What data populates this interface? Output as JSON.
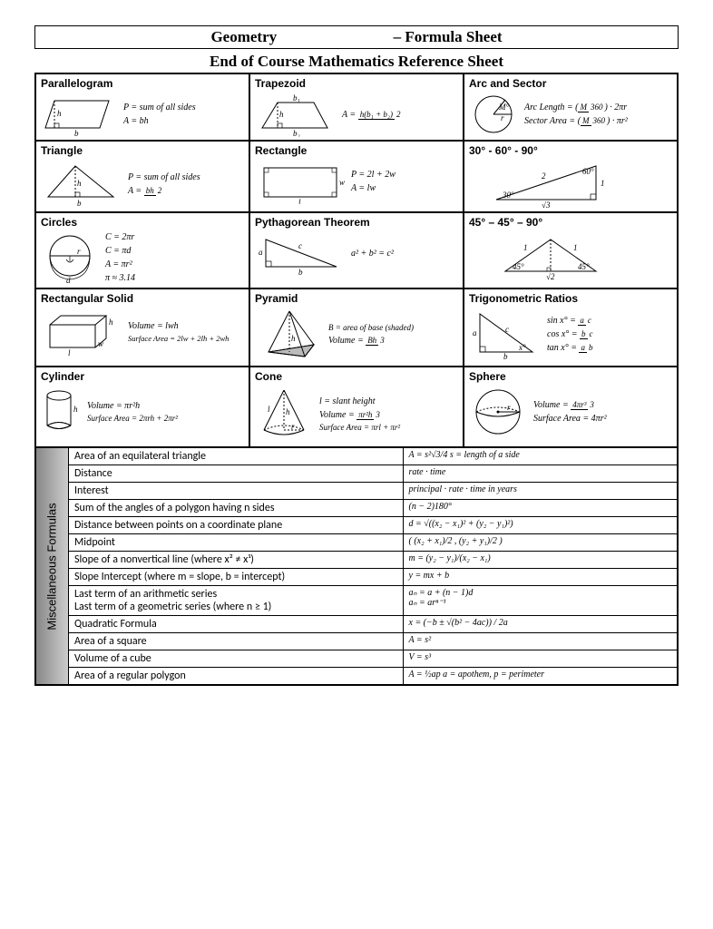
{
  "header": {
    "title_left": "Geometry",
    "title_right": "– Formula Sheet",
    "subtitle": "End of Course Mathematics Reference Sheet"
  },
  "cells": {
    "parallelogram": {
      "title": "Parallelogram",
      "f1": "P = sum of all sides",
      "f2": "A = bh"
    },
    "trapezoid": {
      "title": "Trapezoid",
      "f1": "A = ",
      "frac_n": "h(b₁ + b₂)",
      "frac_d": "2"
    },
    "arc": {
      "title": "Arc and Sector",
      "f1": "Arc Length = ",
      "f1b": " · 2πr",
      "f2": "Sector Area = ",
      "f2b": " · πr²",
      "frac_n": "M",
      "frac_d": "360"
    },
    "triangle": {
      "title": "Triangle",
      "f1": "P = sum of all sides",
      "f2": "A = ",
      "frac_n": "bh",
      "frac_d": "2"
    },
    "rectangle": {
      "title": "Rectangle",
      "f1": "P = 2l + 2w",
      "f2": "A = lw"
    },
    "t306090": {
      "title": "30° - 60° - 90°"
    },
    "circles": {
      "title": "Circles",
      "f1": "C = 2πr",
      "f2": "C = πd",
      "f3": "A = πr²",
      "f4": "π ≈ 3.14"
    },
    "pythag": {
      "title": "Pythagorean Theorem",
      "f1": "a² + b² = c²"
    },
    "t454590": {
      "title": "45° – 45° – 90°"
    },
    "rectsolid": {
      "title": "Rectangular Solid",
      "f1": "Volume = lwh",
      "f2": "Surface Area = 2lw + 2lh + 2wh"
    },
    "pyramid": {
      "title": "Pyramid",
      "f1": "B = area of base (shaded)",
      "f2": "Volume = ",
      "frac_n": "Bh",
      "frac_d": "3"
    },
    "trig": {
      "title": "Trigonometric Ratios",
      "f1": "sin x° = ",
      "f2": "cos x° = ",
      "f3": "tan x° = "
    },
    "cylinder": {
      "title": "Cylinder",
      "f1": "Volume = πr²h",
      "f2": "Surface Area = 2πrh + 2πr²"
    },
    "cone": {
      "title": "Cone",
      "f1": "l = slant height",
      "f2": "Volume = ",
      "frac_n": "πr²h",
      "frac_d": "3",
      "f3": "Surface Area = πrl + πr²"
    },
    "sphere": {
      "title": "Sphere",
      "f1": "Volume = ",
      "frac_n": "4πr³",
      "frac_d": "3",
      "f2": "Surface Area = 4πr²"
    }
  },
  "misc": {
    "label": "Miscellaneous Formulas",
    "rows": [
      {
        "name": "Area of an equilateral triangle",
        "formula": "A = s²√3/4   s = length of a side"
      },
      {
        "name": "Distance",
        "formula": "rate · time"
      },
      {
        "name": "Interest",
        "formula": "principal · rate · time in years"
      },
      {
        "name": "Sum of the angles of a polygon having n sides",
        "formula": "(n − 2)180°"
      },
      {
        "name": "Distance between points on a coordinate plane",
        "formula": "d = √((x₂ − x₁)² + (y₂ − y₁)²)"
      },
      {
        "name": "Midpoint",
        "formula": "( (x₂ + x₁)/2 , (y₂ + y₁)/2 )"
      },
      {
        "name": "Slope of a nonvertical line (where x² ≠ x¹)",
        "formula": "m = (y₂ − y₁)/(x₂ − x₁)"
      },
      {
        "name": "Slope Intercept (where m = slope, b = intercept)",
        "formula": "y = mx + b"
      },
      {
        "name": "Last term of an arithmetic series\nLast term of a geometric series (where n ≥ 1)",
        "formula": "aₙ = a + (n − 1)d\naₙ = arⁿ⁻¹"
      },
      {
        "name": "Quadratic Formula",
        "formula": "x = (−b ± √(b² − 4ac)) / 2a"
      },
      {
        "name": "Area of a square",
        "formula": "A = s²"
      },
      {
        "name": "Volume of a cube",
        "formula": "V = s³"
      },
      {
        "name": "Area of a regular polygon",
        "formula": "A = ½ap   a = apothem, p = perimeter"
      }
    ]
  }
}
